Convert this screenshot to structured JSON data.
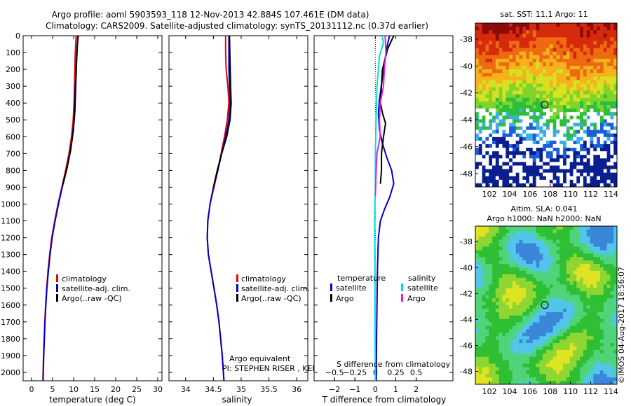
{
  "header": {
    "title_line1": "Argo profile: aoml 5903593_118 12-Nov-2013 42.884S 107.461E (DM data)",
    "title_line2": "Climatology: CARS2009. Satellite-adjusted climatology: synTS_20131112.nc (0.37d earlier)"
  },
  "annotations": {
    "argo_equivalent": "Argo equivalent",
    "pi": "PI: STEPHEN RISER , KENNETH JOHNSON",
    "s_diff_label": "S difference from climatology",
    "imos_stamp": "©IMOS 04-Aug-2017 18:56:07"
  },
  "legends": {
    "profile": [
      "climatology",
      "satellite-adj. clim.",
      "Argo(..raw -QC)"
    ],
    "diff_temperature_header": "temperature",
    "diff_salinity_header": "salinity",
    "diff_temperature": [
      "satellite",
      "Argo"
    ],
    "diff_salinity": [
      "satellite",
      "Argo"
    ]
  },
  "maps": {
    "sst_title": "sat. SST: 11.1 Argo: 11",
    "sla_title1": "Altim. SLA: 0.041",
    "sla_title2": "Argo h1000: NaN h2000: NaN",
    "lon_ticks": [
      "102",
      "104",
      "106",
      "108",
      "110",
      "112",
      "114"
    ],
    "lat_ticks": [
      "-38",
      "-40",
      "-42",
      "-44",
      "-46",
      "-48"
    ],
    "argo_lon": 107.461,
    "argo_lat": -42.884
  },
  "colors": {
    "climatology": "#ee0000",
    "satellite": "#0000cc",
    "argo": "#000000",
    "sat_salinity": "#00e0e0",
    "argo_salinity": "#e020e0"
  },
  "chart_data": [
    {
      "type": "line",
      "title": "",
      "xlabel": "temperature (deg C)",
      "ylabel": "",
      "xlim": [
        -2,
        31
      ],
      "ylim": [
        2050,
        0
      ],
      "x_ticks": [
        0,
        5,
        10,
        15,
        20,
        25,
        30
      ],
      "y_ticks": [
        0,
        100,
        200,
        300,
        400,
        500,
        600,
        700,
        800,
        900,
        1000,
        1100,
        1200,
        1300,
        1400,
        1500,
        1600,
        1700,
        1800,
        1900,
        2000
      ],
      "series": [
        {
          "name": "climatology",
          "color": "#ee0000",
          "points": [
            [
              10.6,
              0
            ],
            [
              10.4,
              100
            ],
            [
              10.3,
              200
            ],
            [
              10.2,
              300
            ],
            [
              10.1,
              400
            ],
            [
              9.9,
              500
            ],
            [
              9.5,
              600
            ],
            [
              8.9,
              700
            ],
            [
              8.1,
              800
            ],
            [
              7.2,
              900
            ],
            [
              6.3,
              1000
            ],
            [
              5.5,
              1100
            ],
            [
              4.8,
              1200
            ],
            [
              4.3,
              1300
            ],
            [
              3.9,
              1400
            ],
            [
              3.6,
              1500
            ],
            [
              3.35,
              1600
            ],
            [
              3.15,
              1700
            ],
            [
              3.0,
              1800
            ],
            [
              2.85,
              1900
            ],
            [
              2.75,
              2000
            ],
            [
              2.7,
              2050
            ]
          ]
        },
        {
          "name": "satellite-adj. clim.",
          "color": "#0000cc",
          "points": [
            [
              11.0,
              0
            ],
            [
              10.8,
              100
            ],
            [
              10.6,
              200
            ],
            [
              10.4,
              300
            ],
            [
              10.3,
              400
            ],
            [
              10.1,
              500
            ],
            [
              9.7,
              600
            ],
            [
              9.1,
              700
            ],
            [
              8.3,
              800
            ],
            [
              7.3,
              900
            ],
            [
              6.4,
              1000
            ],
            [
              5.6,
              1100
            ],
            [
              4.9,
              1200
            ],
            [
              4.4,
              1300
            ],
            [
              4.0,
              1400
            ],
            [
              3.65,
              1500
            ],
            [
              3.4,
              1600
            ],
            [
              3.2,
              1700
            ],
            [
              3.05,
              1800
            ],
            [
              2.9,
              1900
            ],
            [
              2.8,
              2000
            ],
            [
              2.75,
              2050
            ]
          ]
        },
        {
          "name": "Argo(..raw -QC)",
          "color": "#000000",
          "points": [
            [
              11.1,
              0
            ],
            [
              10.9,
              50
            ],
            [
              10.7,
              150
            ],
            [
              10.5,
              300
            ],
            [
              10.3,
              450
            ],
            [
              9.95,
              560
            ],
            [
              9.3,
              680
            ],
            [
              8.4,
              790
            ],
            [
              7.5,
              880
            ]
          ]
        }
      ]
    },
    {
      "type": "line",
      "title": "",
      "xlabel": "salinity",
      "ylabel": "",
      "xlim": [
        33.7,
        36.2
      ],
      "ylim": [
        2050,
        0
      ],
      "x_ticks": [
        34,
        34.5,
        35,
        35.5,
        36
      ],
      "x_tick_labels": [
        "34",
        "34.5",
        "35",
        "35.5",
        "36"
      ],
      "series": [
        {
          "name": "climatology",
          "color": "#ee0000",
          "points": [
            [
              34.72,
              0
            ],
            [
              34.72,
              100
            ],
            [
              34.73,
              200
            ],
            [
              34.76,
              300
            ],
            [
              34.78,
              400
            ],
            [
              34.75,
              500
            ],
            [
              34.7,
              600
            ],
            [
              34.64,
              700
            ],
            [
              34.58,
              800
            ],
            [
              34.51,
              900
            ],
            [
              34.44,
              1000
            ],
            [
              34.4,
              1100
            ],
            [
              34.39,
              1200
            ],
            [
              34.41,
              1300
            ],
            [
              34.46,
              1400
            ],
            [
              34.51,
              1500
            ],
            [
              34.56,
              1600
            ],
            [
              34.6,
              1700
            ],
            [
              34.63,
              1800
            ],
            [
              34.66,
              1900
            ],
            [
              34.68,
              2000
            ],
            [
              34.69,
              2050
            ]
          ]
        },
        {
          "name": "satellite-adj. clim.",
          "color": "#0000cc",
          "points": [
            [
              34.78,
              0
            ],
            [
              34.78,
              100
            ],
            [
              34.78,
              200
            ],
            [
              34.79,
              300
            ],
            [
              34.8,
              400
            ],
            [
              34.78,
              500
            ],
            [
              34.72,
              600
            ],
            [
              34.65,
              700
            ],
            [
              34.58,
              800
            ],
            [
              34.5,
              900
            ],
            [
              34.44,
              1000
            ],
            [
              34.4,
              1100
            ],
            [
              34.39,
              1200
            ],
            [
              34.41,
              1300
            ],
            [
              34.46,
              1400
            ],
            [
              34.51,
              1500
            ],
            [
              34.56,
              1600
            ],
            [
              34.6,
              1700
            ],
            [
              34.63,
              1800
            ],
            [
              34.66,
              1900
            ],
            [
              34.68,
              2000
            ],
            [
              34.69,
              2050
            ]
          ]
        },
        {
          "name": "Argo(..raw -QC)",
          "color": "#000000",
          "points": [
            [
              34.79,
              0
            ],
            [
              34.8,
              150
            ],
            [
              34.81,
              300
            ],
            [
              34.82,
              400
            ],
            [
              34.8,
              500
            ],
            [
              34.74,
              600
            ],
            [
              34.65,
              700
            ],
            [
              34.57,
              800
            ],
            [
              34.5,
              900
            ]
          ]
        }
      ]
    },
    {
      "type": "line",
      "title": "",
      "xlabel": "T difference from climatology",
      "ylabel": "",
      "xlim": [
        -3,
        3.8
      ],
      "ylim": [
        2050,
        0
      ],
      "x_ticks": [
        -2,
        -1,
        0,
        1,
        2
      ],
      "x_tick_labels": [
        "−2",
        "−1",
        "0",
        "1",
        "2"
      ],
      "s_xlim": [
        -0.75,
        0.95
      ],
      "s_ticks": [
        -0.5,
        -0.25,
        0,
        0.25,
        0.5
      ],
      "s_tick_labels": [
        "−0.5",
        "−0.25",
        "0",
        "0.25",
        "0.5"
      ],
      "series": [
        {
          "name": "temperature satellite",
          "axis": "T",
          "color": "#0000cc",
          "points": [
            [
              0.7,
              0
            ],
            [
              0.6,
              50
            ],
            [
              0.5,
              120
            ],
            [
              0.35,
              250
            ],
            [
              0.2,
              380
            ],
            [
              0.15,
              460
            ],
            [
              0.2,
              560
            ],
            [
              0.35,
              640
            ],
            [
              0.55,
              720
            ],
            [
              0.8,
              800
            ],
            [
              0.9,
              880
            ],
            [
              0.7,
              960
            ],
            [
              0.45,
              1030
            ],
            [
              0.25,
              1100
            ],
            [
              0.15,
              1200
            ],
            [
              0.1,
              1400
            ],
            [
              0.08,
              1600
            ],
            [
              0.06,
              1800
            ],
            [
              0.05,
              2050
            ]
          ]
        },
        {
          "name": "temperature Argo",
          "axis": "T",
          "color": "#000000",
          "points": [
            [
              0.9,
              0
            ],
            [
              0.6,
              80
            ],
            [
              0.35,
              200
            ],
            [
              0.3,
              300
            ],
            [
              0.25,
              400
            ],
            [
              0.35,
              460
            ],
            [
              0.5,
              520
            ],
            [
              0.4,
              600
            ],
            [
              0.3,
              700
            ],
            [
              0.3,
              800
            ],
            [
              0.25,
              880
            ]
          ]
        },
        {
          "name": "salinity satellite",
          "axis": "S",
          "color": "#00e0e0",
          "points": [
            [
              0.08,
              0
            ],
            [
              0.1,
              40
            ],
            [
              0.05,
              120
            ],
            [
              0.02,
              300
            ],
            [
              0.01,
              500
            ],
            [
              0.0,
              700
            ],
            [
              0.0,
              900
            ],
            [
              -0.01,
              1100
            ],
            [
              -0.005,
              1400
            ],
            [
              -0.005,
              1700
            ],
            [
              0.0,
              2050
            ]
          ]
        },
        {
          "name": "salinity Argo",
          "axis": "S",
          "color": "#e020e0",
          "points": [
            [
              0.12,
              0
            ],
            [
              0.13,
              100
            ],
            [
              0.11,
              200
            ],
            [
              0.1,
              300
            ],
            [
              0.06,
              400
            ],
            [
              0.05,
              500
            ],
            [
              0.06,
              600
            ],
            [
              0.02,
              700
            ],
            [
              0.01,
              800
            ],
            [
              0.0,
              950
            ]
          ]
        }
      ]
    }
  ]
}
